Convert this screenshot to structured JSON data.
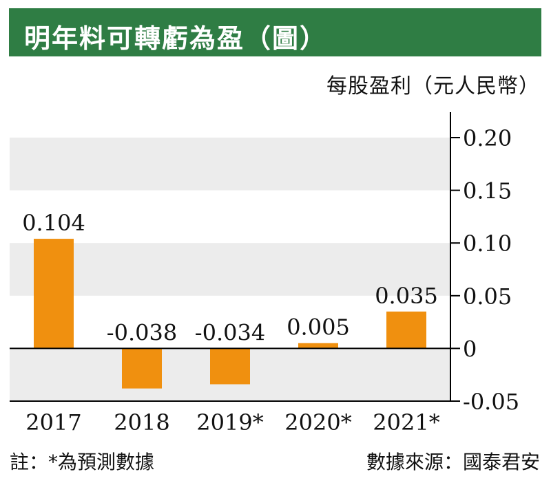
{
  "header": {
    "title": "明年料可轉虧為盈（圖）"
  },
  "footer": {
    "note": "註：*為預測數據",
    "source": "數據來源：國泰君安"
  },
  "colors": {
    "title_background": "#2f7d44",
    "bar": "#f0900f",
    "band": "#ececec"
  },
  "chart_data": {
    "type": "bar",
    "categories": [
      "2017",
      "2018",
      "2019*",
      "2020*",
      "2021*"
    ],
    "values": [
      0.104,
      -0.038,
      -0.034,
      0.005,
      0.035
    ],
    "value_labels": [
      "0.104",
      "-0.038",
      "-0.034",
      "0.005",
      "0.035"
    ],
    "ylabel": "每股盈利（元人民幣）",
    "ylim": [
      -0.05,
      0.2
    ],
    "yticks": [
      -0.05,
      0,
      0.05,
      0.1,
      0.15,
      0.2
    ],
    "ytick_labels": [
      "-0.05",
      "0",
      "0.05",
      "0.10",
      "0.15",
      "0.20"
    ],
    "y_axis_side": "right",
    "grid": "alternating horizontal bands"
  }
}
